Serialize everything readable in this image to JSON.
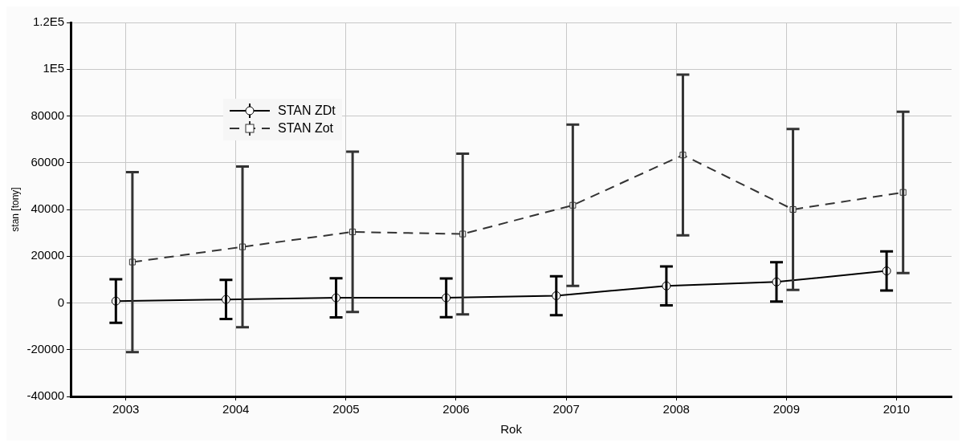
{
  "chart_data": {
    "type": "line",
    "xlabel": "Rok",
    "ylabel": "stan [tony]",
    "xlim": [
      2002.5,
      2010.5
    ],
    "xticks": [
      2003,
      2004,
      2005,
      2006,
      2007,
      2008,
      2009,
      2010
    ],
    "ylim": [
      -40000,
      120000
    ],
    "yticks": [
      -40000,
      -20000,
      0,
      20000,
      40000,
      60000,
      80000,
      {
        "value": 100000,
        "label": "1E5"
      },
      {
        "value": 120000,
        "label": "1.2E5"
      }
    ],
    "grid": true,
    "legend": "top left",
    "series": [
      {
        "name": "STAN ZDt",
        "color": "#000000",
        "marker": "circle",
        "line_style": "solid",
        "x": [
          2002.91,
          2003.91,
          2004.91,
          2005.91,
          2006.91,
          2007.91,
          2008.91,
          2009.91
        ],
        "values": [
          800,
          1500,
          2200,
          2200,
          3100,
          7300,
          9000,
          13700
        ],
        "errors": [
          9300,
          8400,
          8400,
          8300,
          8300,
          8300,
          8400,
          8400
        ]
      },
      {
        "name": "STAN Zot",
        "color": "#333333",
        "marker": "square",
        "line_style": "dashed",
        "x": [
          2003.06,
          2004.06,
          2005.06,
          2006.06,
          2007.06,
          2008.06,
          2009.06,
          2010.06
        ],
        "values": [
          17500,
          24000,
          30400,
          29500,
          41800,
          63300,
          40000,
          47300
        ],
        "errors": [
          38500,
          34400,
          34300,
          34400,
          34500,
          34400,
          34400,
          34500
        ]
      }
    ]
  }
}
